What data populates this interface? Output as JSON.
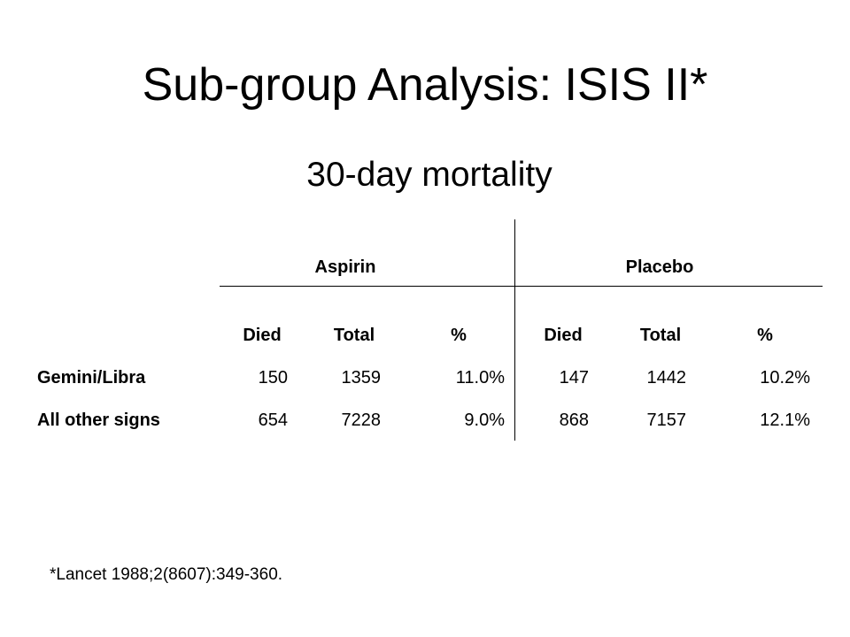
{
  "title": "Sub-group Analysis: ISIS II*",
  "subtitle": "30-day mortality",
  "table": {
    "group_headers": [
      "Aspirin",
      "Placebo"
    ],
    "column_headers": [
      "Died",
      "Total",
      "%",
      "Died",
      "Total",
      "%"
    ],
    "rows": [
      {
        "label": "Gemini/Libra",
        "cells": [
          "150",
          "1359",
          "11.0%",
          "147",
          "1442",
          "10.2%"
        ]
      },
      {
        "label": "All other signs",
        "cells": [
          "654",
          "7228",
          "9.0%",
          "868",
          "7157",
          "12.1%"
        ]
      }
    ]
  },
  "footnote": "*Lancet 1988;2(8607):349-360."
}
